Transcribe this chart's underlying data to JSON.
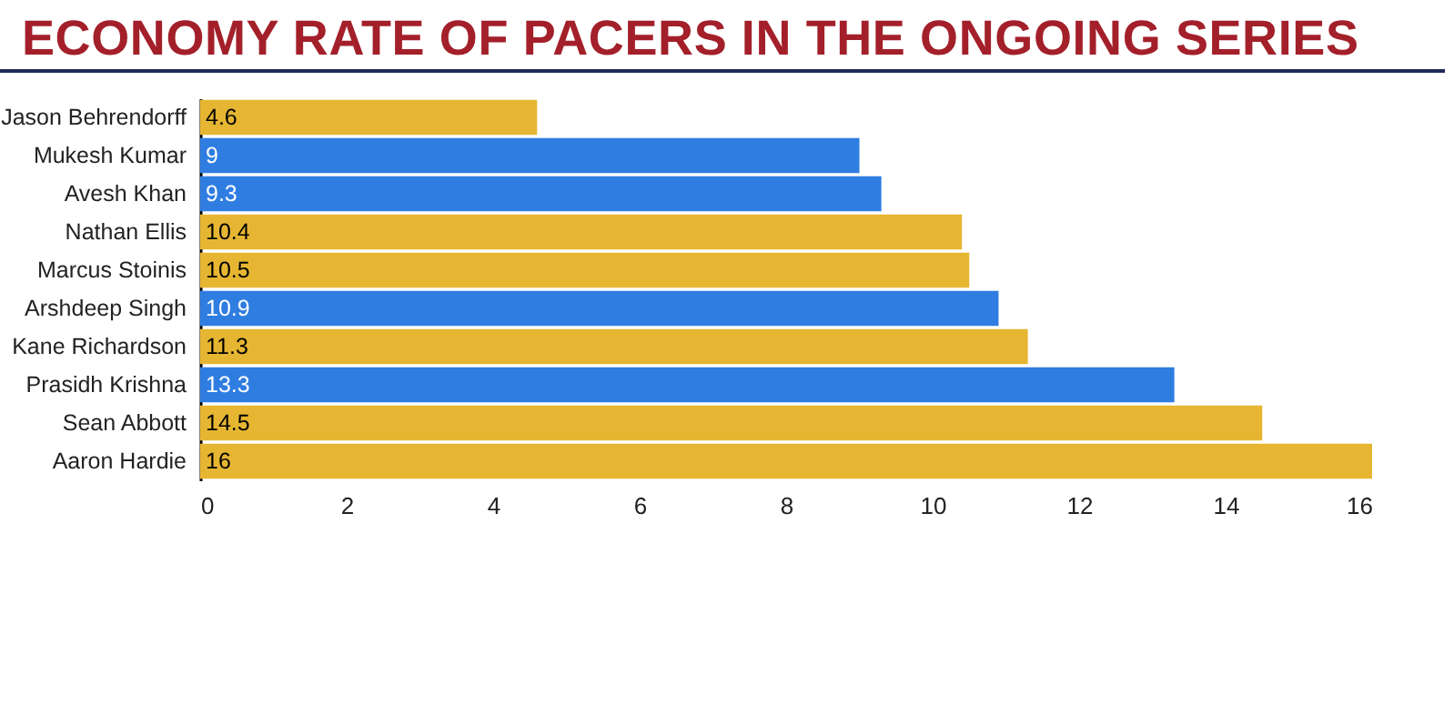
{
  "chart_data": {
    "type": "bar",
    "orientation": "horizontal",
    "title": "ECONOMY RATE OF PACERS IN THE ONGOING SERIES",
    "categories": [
      "Jason Behrendorff",
      "Mukesh Kumar",
      "Avesh Khan",
      "Nathan Ellis",
      "Marcus Stoinis",
      "Arshdeep Singh",
      "Kane Richardson",
      "Prasidh Krishna",
      "Sean Abbott",
      "Aaron Hardie"
    ],
    "values": [
      4.6,
      9,
      9.3,
      10.4,
      10.5,
      10.9,
      11.3,
      13.3,
      14.5,
      16
    ],
    "colors": [
      "#e6b632",
      "#2f7de1",
      "#2f7de1",
      "#e6b632",
      "#e6b632",
      "#2f7de1",
      "#e6b632",
      "#2f7de1",
      "#e6b632",
      "#e6b632"
    ],
    "xlim": [
      0,
      16
    ],
    "xticks": [
      0,
      2,
      4,
      6,
      8,
      10,
      12,
      14,
      16
    ],
    "data_labels": true,
    "grid": false
  }
}
